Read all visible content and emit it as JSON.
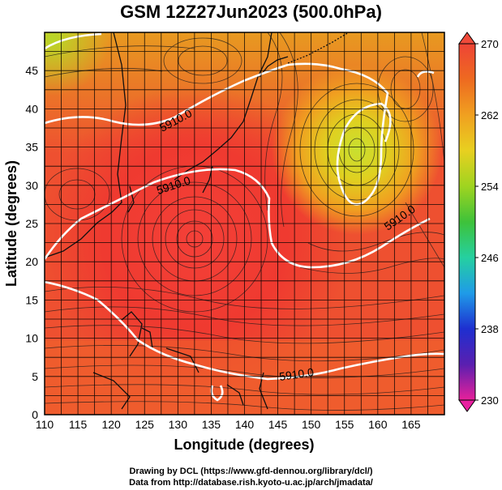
{
  "title": "GSM 12Z27Jun2023 (500.0hPa)",
  "x_axis": {
    "label": "Longitude (degrees)",
    "ticks": [
      "110",
      "115",
      "120",
      "125",
      "130",
      "135",
      "140",
      "145",
      "150",
      "155",
      "160",
      "165"
    ]
  },
  "y_axis": {
    "label": "Latitude  (degrees)",
    "ticks": [
      "0",
      "5",
      "10",
      "15",
      "20",
      "25",
      "30",
      "35",
      "40",
      "45"
    ]
  },
  "colorbar": {
    "ticks": [
      "270",
      "262",
      "254",
      "246",
      "238",
      "230"
    ],
    "range": [
      230,
      270
    ],
    "colors": [
      "#e8209a",
      "#5a1fb0",
      "#1e2fd0",
      "#1f9be8",
      "#25d0a0",
      "#3ec23a",
      "#9fd420",
      "#e8d020",
      "#f0a020",
      "#ee6a20",
      "#ee4436"
    ]
  },
  "contours": {
    "color": "#ffffff",
    "labels": [
      "5910.0",
      "5910.0",
      "5910.0",
      "5910.0"
    ]
  },
  "field": {
    "low_center": "~257 near 157E 37N",
    "warm_core": "~268 near 133E 25N",
    "grid": true
  },
  "credits": {
    "line1": "Drawing by DCL (https://www.gfd-dennou.org/library/dcl/)",
    "line2": "Data from http://database.rish.kyoto-u.ac.jp/arch/jmadata/"
  }
}
